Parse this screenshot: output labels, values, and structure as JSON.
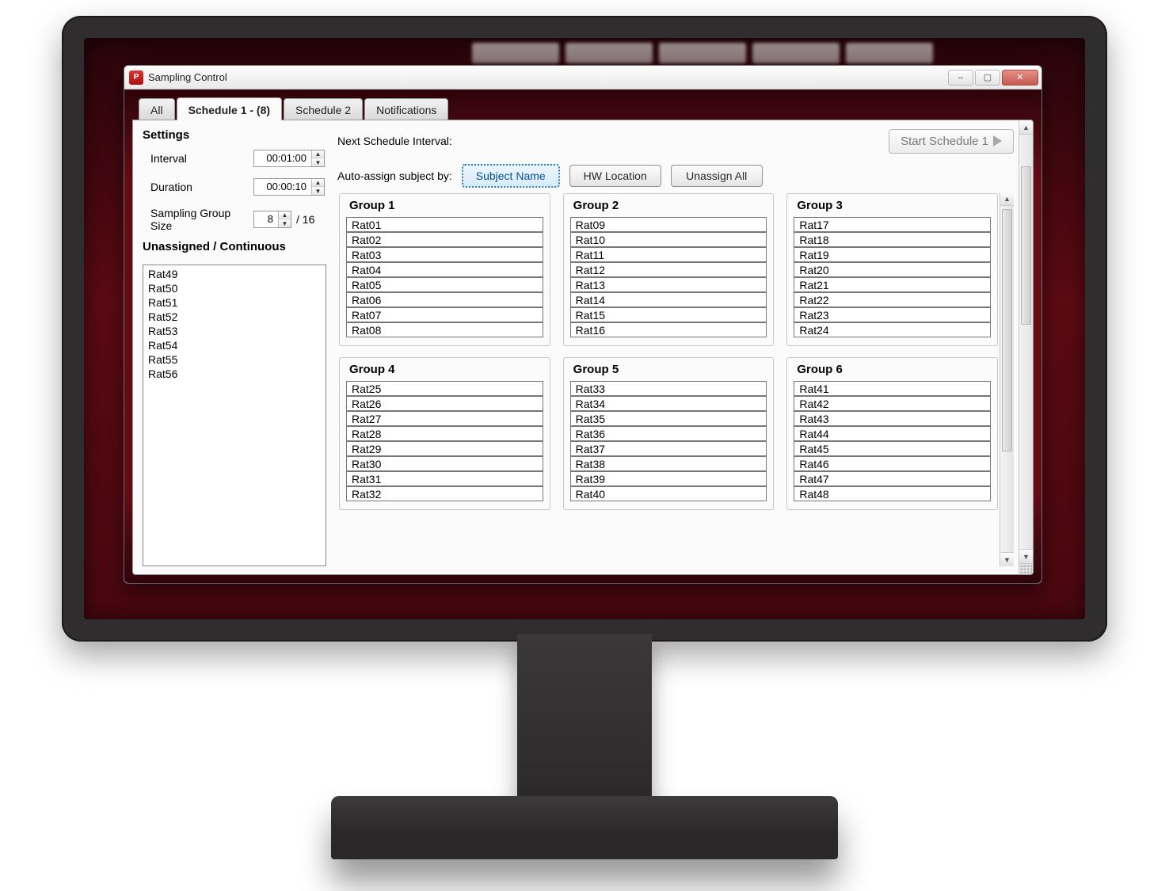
{
  "colors": {
    "bezel": "#2f2d2d",
    "screen_bg_dark": "#2a050a",
    "screen_bg_mid": "#5f0b15",
    "window_border": "#6e6e6e",
    "accent_focus": "#2a7bbf"
  },
  "window": {
    "title": "Sampling Control",
    "icon_text": "P",
    "buttons": {
      "min": "–",
      "max": "▢",
      "close": "✕"
    }
  },
  "tabs": [
    {
      "id": "all",
      "label": "All",
      "active": false
    },
    {
      "id": "s1",
      "label": "Schedule 1 - (8)",
      "active": true
    },
    {
      "id": "s2",
      "label": "Schedule 2",
      "active": false
    },
    {
      "id": "nt",
      "label": "Notifications",
      "active": false
    }
  ],
  "settings": {
    "heading": "Settings",
    "interval_label": "Interval",
    "interval_value": "00:01:00",
    "duration_label": "Duration",
    "duration_value": "00:00:10",
    "group_size_label": "Sampling Group Size",
    "group_size_value": "8",
    "group_size_denom": "/ 16"
  },
  "unassigned": {
    "heading": "Unassigned / Continuous",
    "items": [
      "Rat49",
      "Rat50",
      "Rat51",
      "Rat52",
      "Rat53",
      "Rat54",
      "Rat55",
      "Rat56"
    ]
  },
  "schedule": {
    "next_interval_label": "Next Schedule Interval:",
    "next_interval_value": "",
    "start_label": "Start Schedule 1",
    "auto_assign_label": "Auto-assign subject by:",
    "buttons": {
      "subject_name": "Subject Name",
      "hw_location": "HW Location",
      "unassign_all": "Unassign All"
    },
    "selected_button": "subject_name"
  },
  "groups": [
    {
      "title": "Group 1",
      "items": [
        "Rat01",
        "Rat02",
        "Rat03",
        "Rat04",
        "Rat05",
        "Rat06",
        "Rat07",
        "Rat08"
      ]
    },
    {
      "title": "Group 2",
      "items": [
        "Rat09",
        "Rat10",
        "Rat11",
        "Rat12",
        "Rat13",
        "Rat14",
        "Rat15",
        "Rat16"
      ]
    },
    {
      "title": "Group 3",
      "items": [
        "Rat17",
        "Rat18",
        "Rat19",
        "Rat20",
        "Rat21",
        "Rat22",
        "Rat23",
        "Rat24"
      ]
    },
    {
      "title": "Group 4",
      "items": [
        "Rat25",
        "Rat26",
        "Rat27",
        "Rat28",
        "Rat29",
        "Rat30",
        "Rat31",
        "Rat32"
      ]
    },
    {
      "title": "Group 5",
      "items": [
        "Rat33",
        "Rat34",
        "Rat35",
        "Rat36",
        "Rat37",
        "Rat38",
        "Rat39",
        "Rat40"
      ]
    },
    {
      "title": "Group 6",
      "items": [
        "Rat41",
        "Rat42",
        "Rat43",
        "Rat44",
        "Rat45",
        "Rat46",
        "Rat47",
        "Rat48"
      ]
    }
  ]
}
